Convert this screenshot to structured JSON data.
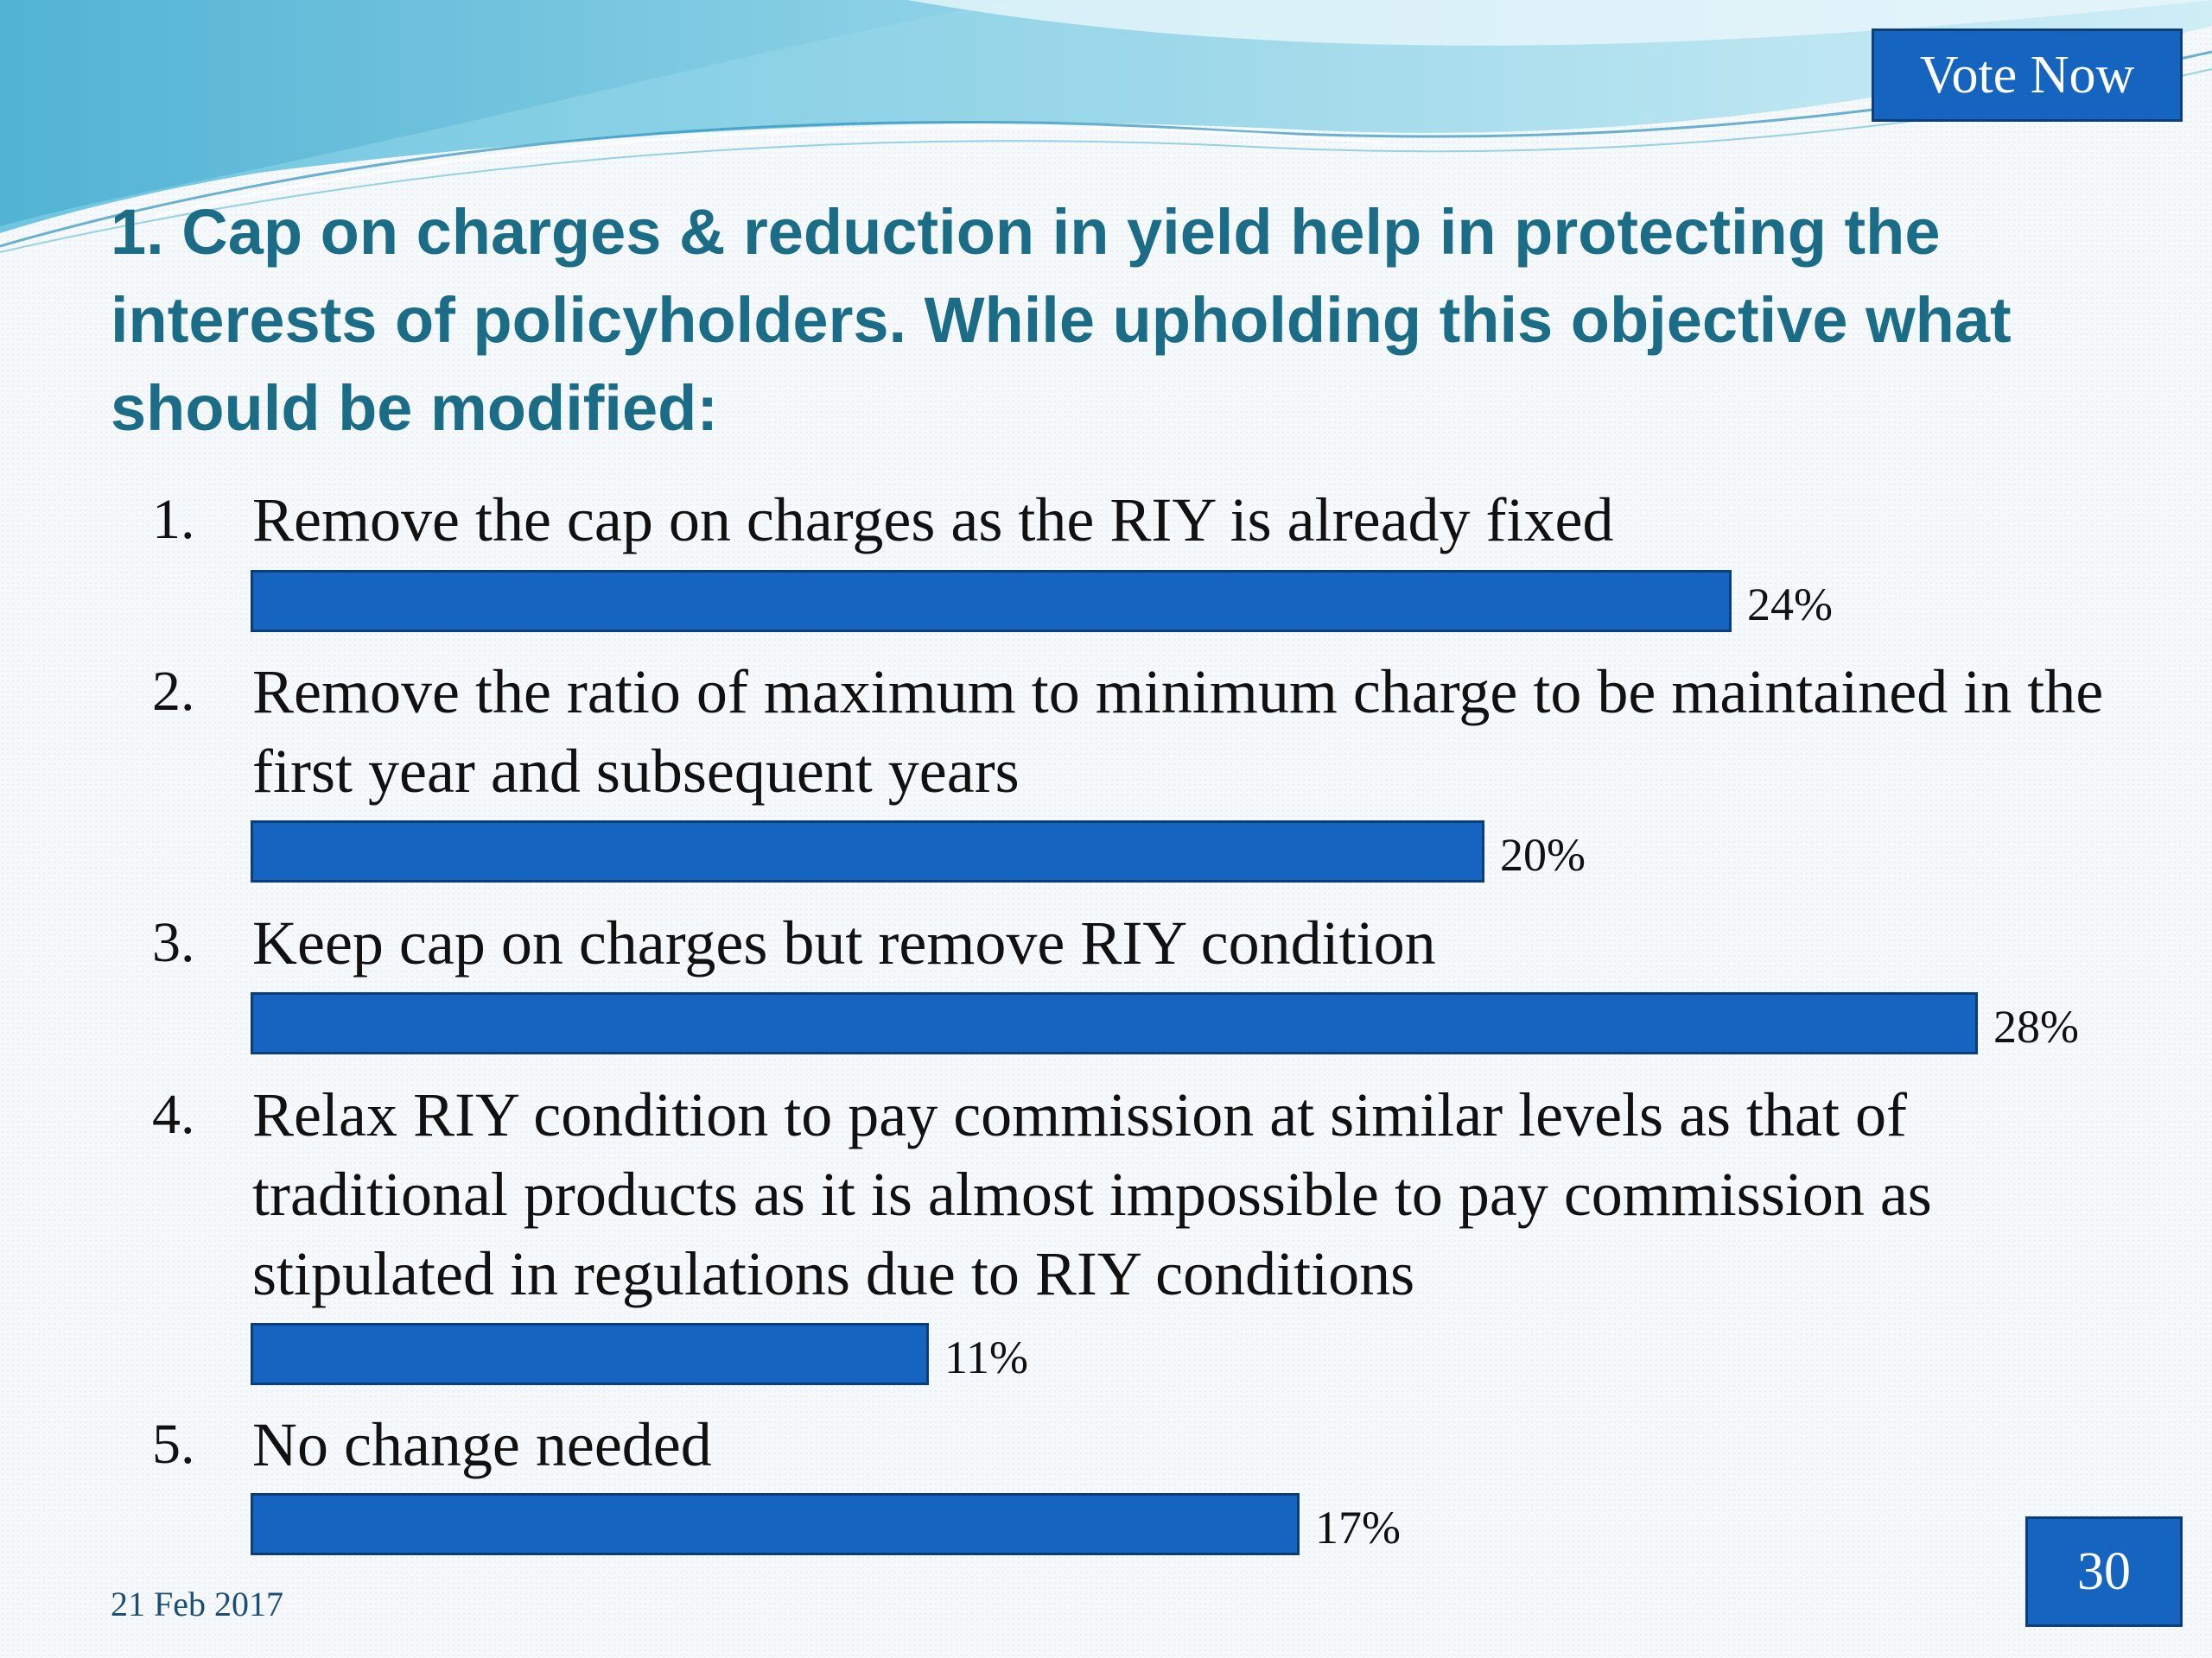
{
  "header": {
    "vote_label": "Vote Now"
  },
  "question": {
    "text": "1. Cap on charges & reduction in yield help in protecting the interests of policyholders. While upholding this objective what should be modified:"
  },
  "options": [
    {
      "number": "1.",
      "text": "Remove the cap on charges as the RIY is already fixed",
      "percent_label": "24%"
    },
    {
      "number": "2.",
      "text": "Remove the ratio of maximum to minimum charge to be maintained in the first year and subsequent years",
      "percent_label": "20%"
    },
    {
      "number": "3.",
      "text": "Keep cap on charges but remove RIY condition",
      "percent_label": "28%"
    },
    {
      "number": "4.",
      "text": "Relax RIY condition to pay commission at similar levels as that of traditional products as it is almost impossible to pay commission as stipulated in regulations due to RIY conditions",
      "percent_label": "11%"
    },
    {
      "number": "5.",
      "text": "No change needed",
      "percent_label": "17%"
    }
  ],
  "chart_data": {
    "type": "bar",
    "orientation": "horizontal",
    "categories": [
      "1.",
      "2.",
      "3.",
      "4.",
      "5."
    ],
    "values": [
      24,
      20,
      28,
      11,
      17
    ],
    "unit": "%",
    "grid": false,
    "legend": "none",
    "bar_color": "#1565c0"
  },
  "footer": {
    "date": "21 Feb 2017",
    "page_number": "30"
  },
  "colors": {
    "accent": "#1565c0",
    "title": "#1b6c86"
  }
}
